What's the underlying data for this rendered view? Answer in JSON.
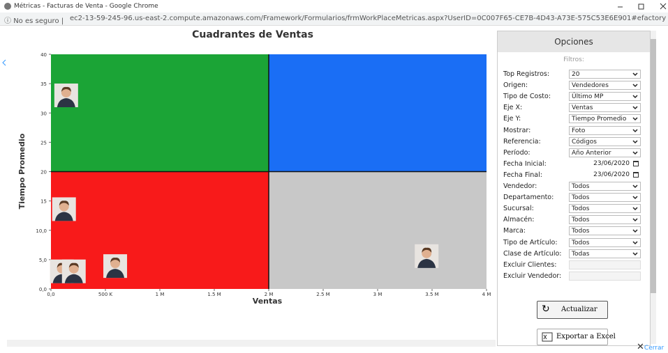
{
  "browser": {
    "window_title": "Métricas - Facturas de Venta - Google Chrome",
    "security": "No es seguro",
    "url": "ec2-13-59-245-96.us-east-2.compute.amazonaws.com/Framework/Formularios/frmWorkPlaceMetricas.aspx?UserID=0C007F65-CE7B-4D43-A73E-575C53E6E901#efactory"
  },
  "chart_data": {
    "type": "scatter",
    "title": "Cuadrantes de Ventas",
    "x_label": "Ventas",
    "y_label": "Tiempo Promedio",
    "xlim": [
      0,
      4000000
    ],
    "ylim": [
      0,
      40
    ],
    "xticks": [
      {
        "value": 0,
        "label": "0,0"
      },
      {
        "value": 500000,
        "label": "500 K"
      },
      {
        "value": 1000000,
        "label": "1 M"
      },
      {
        "value": 1500000,
        "label": "1.5 M"
      },
      {
        "value": 2000000,
        "label": "2 M"
      },
      {
        "value": 2500000,
        "label": "2.5 M"
      },
      {
        "value": 3000000,
        "label": "3 M"
      },
      {
        "value": 3500000,
        "label": "3.5 M"
      },
      {
        "value": 4000000,
        "label": "4 M"
      }
    ],
    "yticks": [
      {
        "value": 0,
        "label": "0,0"
      },
      {
        "value": 5,
        "label": "5,0"
      },
      {
        "value": 10,
        "label": "10,0"
      },
      15,
      20,
      25,
      30,
      35,
      40
    ],
    "quadrants": {
      "x": 2000000,
      "y": 20,
      "colors": {
        "top_left": "#1ba436",
        "top_right": "#1a6ef5",
        "bottom_left": "#f81a1a",
        "bottom_right": "#c8c8c8"
      }
    },
    "x": [
      140000,
      120000,
      100000,
      210000,
      590000,
      3450000
    ],
    "values": [
      33,
      13.6,
      3,
      3,
      3.9,
      5.6
    ]
  },
  "panel": {
    "title": "Opciones",
    "section": "Filtros:",
    "fields": [
      {
        "label": "Top Registros:",
        "value": "20",
        "kind": "select"
      },
      {
        "label": "Origen:",
        "value": "Vendedores",
        "kind": "select"
      },
      {
        "label": "Tipo de Costo:",
        "value": "Último MP",
        "kind": "select"
      },
      {
        "label": "Eje X:",
        "value": "Ventas",
        "kind": "select"
      },
      {
        "label": "Eje Y:",
        "value": "Tiempo Promedio",
        "kind": "select"
      },
      {
        "label": "Mostrar:",
        "value": "Foto",
        "kind": "select"
      },
      {
        "label": "Referencia:",
        "value": "Códigos",
        "kind": "select"
      },
      {
        "label": "Período:",
        "value": "Año Anterior",
        "kind": "select"
      },
      {
        "label": "Fecha Inicial:",
        "value": "23/06/2020",
        "kind": "date"
      },
      {
        "label": "Fecha Final:",
        "value": "23/06/2020",
        "kind": "date"
      },
      {
        "label": "Vendedor:",
        "value": "Todos",
        "kind": "select"
      },
      {
        "label": "Departamento:",
        "value": "Todos",
        "kind": "select"
      },
      {
        "label": "Sucursal:",
        "value": "Todos",
        "kind": "select"
      },
      {
        "label": "Almacén:",
        "value": "Todos",
        "kind": "select"
      },
      {
        "label": "Marca:",
        "value": "Todos",
        "kind": "select"
      },
      {
        "label": "Tipo de Artículo:",
        "value": "Todos",
        "kind": "select"
      },
      {
        "label": "Clase de Artículo:",
        "value": "Todas",
        "kind": "select"
      },
      {
        "label": "Excluir Clientes:",
        "kind": "text"
      },
      {
        "label": "Excluir Vendedor:",
        "kind": "text"
      }
    ],
    "refresh": "Actualizar",
    "export": "Exportar a Excel",
    "close": "Cerrar"
  }
}
